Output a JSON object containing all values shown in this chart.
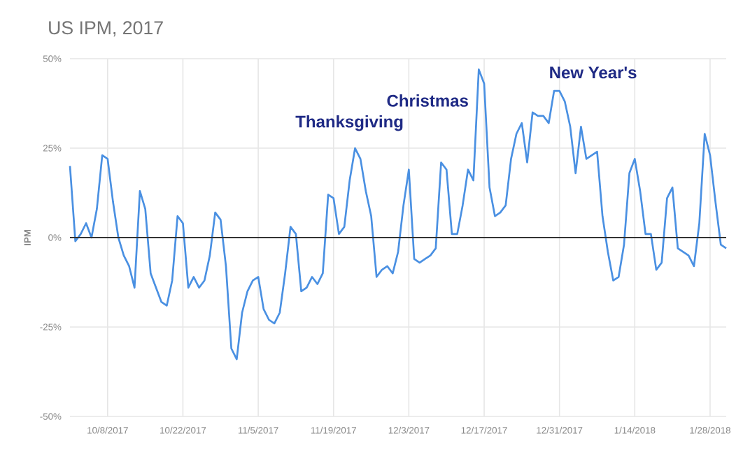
{
  "chart_data": {
    "type": "line",
    "title": "US IPM, 2017",
    "ylabel": "IPM",
    "x": [
      "2017-10-01",
      "2017-10-02",
      "2017-10-03",
      "2017-10-04",
      "2017-10-05",
      "2017-10-06",
      "2017-10-07",
      "2017-10-08",
      "2017-10-09",
      "2017-10-10",
      "2017-10-11",
      "2017-10-12",
      "2017-10-13",
      "2017-10-14",
      "2017-10-15",
      "2017-10-16",
      "2017-10-17",
      "2017-10-18",
      "2017-10-19",
      "2017-10-20",
      "2017-10-21",
      "2017-10-22",
      "2017-10-23",
      "2017-10-24",
      "2017-10-25",
      "2017-10-26",
      "2017-10-27",
      "2017-10-28",
      "2017-10-29",
      "2017-10-30",
      "2017-10-31",
      "2017-11-01",
      "2017-11-02",
      "2017-11-03",
      "2017-11-04",
      "2017-11-05",
      "2017-11-06",
      "2017-11-07",
      "2017-11-08",
      "2017-11-09",
      "2017-11-10",
      "2017-11-11",
      "2017-11-12",
      "2017-11-13",
      "2017-11-14",
      "2017-11-15",
      "2017-11-16",
      "2017-11-17",
      "2017-11-18",
      "2017-11-19",
      "2017-11-20",
      "2017-11-21",
      "2017-11-22",
      "2017-11-23",
      "2017-11-24",
      "2017-11-25",
      "2017-11-26",
      "2017-11-27",
      "2017-11-28",
      "2017-11-29",
      "2017-11-30",
      "2017-12-01",
      "2017-12-02",
      "2017-12-03",
      "2017-12-04",
      "2017-12-05",
      "2017-12-06",
      "2017-12-07",
      "2017-12-08",
      "2017-12-09",
      "2017-12-10",
      "2017-12-11",
      "2017-12-12",
      "2017-12-13",
      "2017-12-14",
      "2017-12-15",
      "2017-12-16",
      "2017-12-17",
      "2017-12-18",
      "2017-12-19",
      "2017-12-20",
      "2017-12-21",
      "2017-12-22",
      "2017-12-23",
      "2017-12-24",
      "2017-12-25",
      "2017-12-26",
      "2017-12-27",
      "2017-12-28",
      "2017-12-29",
      "2017-12-30",
      "2017-12-31",
      "2018-01-01",
      "2018-01-02",
      "2018-01-03",
      "2018-01-04",
      "2018-01-05",
      "2018-01-06",
      "2018-01-07",
      "2018-01-08",
      "2018-01-09",
      "2018-01-10",
      "2018-01-11",
      "2018-01-12",
      "2018-01-13",
      "2018-01-14",
      "2018-01-15",
      "2018-01-16",
      "2018-01-17",
      "2018-01-18",
      "2018-01-19",
      "2018-01-20",
      "2018-01-21",
      "2018-01-22",
      "2018-01-23",
      "2018-01-24",
      "2018-01-25",
      "2018-01-26",
      "2018-01-27",
      "2018-01-28",
      "2018-01-29",
      "2018-01-30",
      "2018-01-31"
    ],
    "series": [
      {
        "color": "#4a90e2",
        "values": [
          20,
          -1,
          1,
          4,
          0,
          8,
          23,
          22,
          10,
          0,
          -5,
          -8,
          -14,
          13,
          8,
          -10,
          -14,
          -18,
          -19,
          -12,
          6,
          4,
          -14,
          -11,
          -14,
          -12,
          -5,
          7,
          5,
          -8,
          -31,
          -34,
          -21,
          -15,
          -12,
          -11,
          -20,
          -23,
          -24,
          -21,
          -10,
          3,
          1,
          -15,
          -14,
          -11,
          -13,
          -10,
          12,
          11,
          1,
          3,
          16,
          25,
          22,
          13,
          6,
          -11,
          -9,
          -8,
          -10,
          -4,
          9,
          19,
          -6,
          -7,
          -6,
          -5,
          -3,
          21,
          19,
          1,
          1,
          9,
          19,
          16,
          47,
          43,
          14,
          6,
          7,
          9,
          22,
          29,
          32,
          21,
          35,
          34,
          34,
          32,
          41,
          41,
          38,
          31,
          18,
          31,
          22,
          23,
          24,
          6,
          -4,
          -12,
          -11,
          -2,
          18,
          22,
          13,
          1,
          1,
          -9,
          -7,
          11,
          14,
          -3,
          -4,
          -5,
          -8,
          4,
          29,
          23,
          10,
          -2,
          -3
        ]
      }
    ],
    "xlim": [
      "2017-10-01",
      "2018-01-31"
    ],
    "xticks": [
      {
        "value": "2017-10-08",
        "label": "10/8/2017"
      },
      {
        "value": "2017-10-22",
        "label": "10/22/2017"
      },
      {
        "value": "2017-11-05",
        "label": "11/5/2017"
      },
      {
        "value": "2017-11-19",
        "label": "11/19/2017"
      },
      {
        "value": "2017-12-03",
        "label": "12/3/2017"
      },
      {
        "value": "2017-12-17",
        "label": "12/17/2017"
      },
      {
        "value": "2017-12-31",
        "label": "12/31/2017"
      },
      {
        "value": "2018-01-14",
        "label": "1/14/2018"
      },
      {
        "value": "2018-01-28",
        "label": "1/28/2018"
      }
    ],
    "ylim": [
      -50,
      50
    ],
    "yticks": [
      {
        "value": -50,
        "label": "-50%"
      },
      {
        "value": -25,
        "label": "-25%"
      },
      {
        "value": 0,
        "label": "0%"
      },
      {
        "value": 25,
        "label": "25%"
      },
      {
        "value": 50,
        "label": "50%"
      }
    ],
    "grid": true,
    "ref_lines": [
      {
        "axis": "y",
        "value": 0,
        "color": "#333333"
      }
    ],
    "annotations": [
      "Thanksgiving",
      "Christmas",
      "New Year's"
    ]
  }
}
